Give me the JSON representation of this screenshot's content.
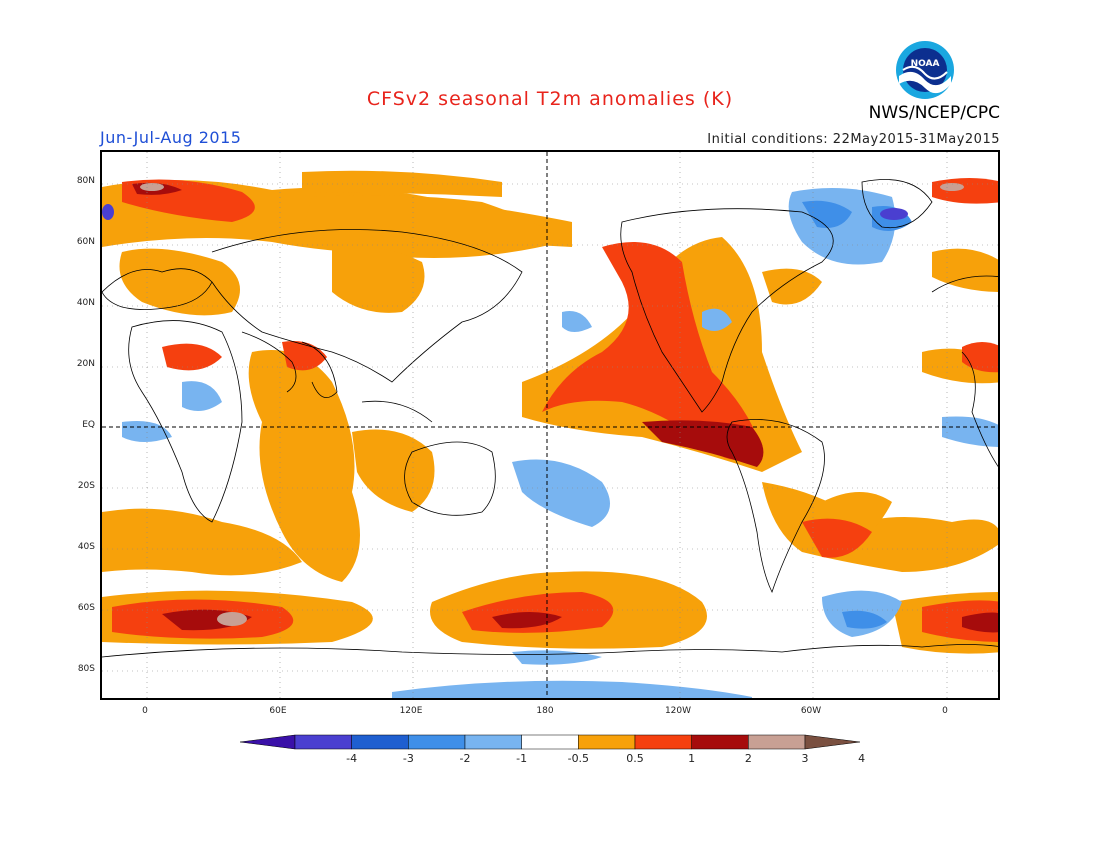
{
  "title": "CFSv2 seasonal T2m anomalies (K)",
  "season": "Jun-Jul-Aug 2015",
  "initial_conditions": "Initial conditions: 22May2015-31May2015",
  "agency": "NWS/NCEP/CPC",
  "logo_text": "NOAA",
  "lat_labels": [
    "80N",
    "60N",
    "40N",
    "20N",
    "EQ",
    "20S",
    "40S",
    "60S",
    "80S"
  ],
  "lon_labels": [
    "0",
    "60E",
    "120E",
    "180",
    "120W",
    "60W",
    "0"
  ],
  "colorbar": {
    "labels": [
      "-4",
      "-3",
      "-2",
      "-1",
      "-0.5",
      "0.5",
      "1",
      "2",
      "3",
      "4"
    ],
    "colors": [
      "#3a10a8",
      "#4a3fd0",
      "#1f5fd0",
      "#3f8fe8",
      "#78b4f0",
      "#ffffff",
      "#f7a10a",
      "#f5400f",
      "#a60c0c",
      "#c8a094",
      "#7a5040"
    ]
  },
  "colors": {
    "title": "#e8241c",
    "season": "#1f4fd6",
    "warm1": "#f7a10a",
    "warm2": "#f5400f",
    "warm3": "#a60c0c",
    "warm4": "#c8a094",
    "cool1": "#78b4f0",
    "cool2": "#3f8fe8",
    "cool3": "#1f5fd0",
    "cool4": "#4a3fd0"
  }
}
